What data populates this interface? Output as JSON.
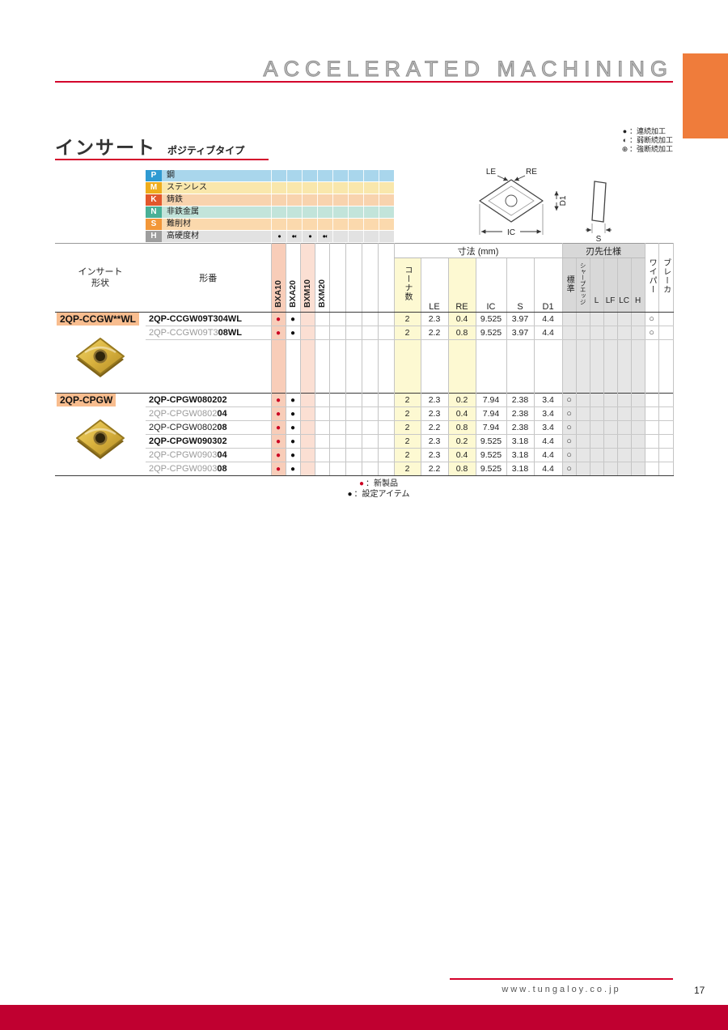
{
  "page": {
    "header_title": "ACCELERATED MACHINING",
    "title": "インサート",
    "subtitle": "ポジティブタイプ",
    "footer_url": "www.tungaloy.co.jp",
    "page_number": "17"
  },
  "machining_legend": [
    {
      "symbol": "●",
      "label": "：連続加工"
    },
    {
      "symbol": "◐",
      "label": "：弱断続加工"
    },
    {
      "symbol": "⊕",
      "label": "：強断続加工"
    }
  ],
  "material_table": {
    "rows": [
      {
        "code": "P",
        "label": "鋼",
        "header_color": "#2f9ad2",
        "band_color": "#a9d6ec",
        "cells": [
          "",
          "",
          "",
          "",
          "",
          "",
          "",
          ""
        ]
      },
      {
        "code": "M",
        "label": "ステンレス",
        "header_color": "#eead1c",
        "band_color": "#f9e7ac",
        "cells": [
          "",
          "",
          "",
          "",
          "",
          "",
          "",
          ""
        ]
      },
      {
        "code": "K",
        "label": "鋳鉄",
        "header_color": "#e2572b",
        "band_color": "#f8d3ae",
        "cells": [
          "",
          "",
          "",
          "",
          "",
          "",
          "",
          ""
        ]
      },
      {
        "code": "N",
        "label": "非鉄金属",
        "header_color": "#49b096",
        "band_color": "#c2e4da",
        "cells": [
          "",
          "",
          "",
          "",
          "",
          "",
          "",
          ""
        ]
      },
      {
        "code": "S",
        "label": "難削材",
        "header_color": "#f29739",
        "band_color": "#fbd9ad",
        "cells": [
          "",
          "",
          "",
          "",
          "",
          "",
          "",
          ""
        ]
      },
      {
        "code": "H",
        "label": "高硬度材",
        "header_color": "#9e9e9e",
        "band_color": "#e2e2e2",
        "cells": [
          "●",
          "●◐",
          "●",
          "●◐",
          "",
          "",
          "",
          ""
        ]
      }
    ]
  },
  "diagram": {
    "le": "LE",
    "re": "RE",
    "ic": "IC",
    "s": "S",
    "d1": "D1"
  },
  "table": {
    "headers": {
      "shape_line1": "インサート",
      "shape_line2": "形状",
      "part": "形番",
      "grades": [
        "BXA10",
        "BXA20",
        "BXM10",
        "BXM20"
      ],
      "dim_group": "寸法 (mm)",
      "corner": "コーナ数",
      "dims": [
        "LE",
        "RE",
        "IC",
        "S",
        "D1"
      ],
      "edge_group": "刃先仕様",
      "edge_cols": [
        "標準",
        "シャープエッジ",
        "L",
        "LF",
        "LC",
        "H"
      ],
      "wiper": "ワイパー",
      "breaker": "ブレーカ"
    },
    "groups": [
      {
        "name": "2QP-CCGW**WL",
        "tall_row": true,
        "rows": [
          {
            "part_prefix": "2QP-CCGW09T304WL",
            "part_suffix": "",
            "style": "bold",
            "dots": [
              "new",
              "set",
              "",
              ""
            ],
            "corner": "2",
            "le": "2.3",
            "re": "0.4",
            "ic": "9.525",
            "s": "3.97",
            "d1": "4.4",
            "mark": "wiper"
          },
          {
            "part_prefix": "2QP-CCGW09T3",
            "part_suffix": "08WL",
            "style": "gray",
            "dots": [
              "new",
              "set",
              "",
              ""
            ],
            "corner": "2",
            "le": "2.2",
            "re": "0.8",
            "ic": "9.525",
            "s": "3.97",
            "d1": "4.4",
            "mark": "wiper"
          }
        ]
      },
      {
        "name": "2QP-CPGW",
        "tall_row": false,
        "rows": [
          {
            "part_prefix": "2QP-CPGW080202",
            "part_suffix": "",
            "style": "bold",
            "dots": [
              "new",
              "set",
              "",
              ""
            ],
            "corner": "2",
            "le": "2.3",
            "re": "0.2",
            "ic": "7.94",
            "s": "2.38",
            "d1": "3.4",
            "mark": "std"
          },
          {
            "part_prefix": "2QP-CPGW0802",
            "part_suffix": "04",
            "style": "gray",
            "dots": [
              "new",
              "set",
              "",
              ""
            ],
            "corner": "2",
            "le": "2.3",
            "re": "0.4",
            "ic": "7.94",
            "s": "2.38",
            "d1": "3.4",
            "mark": "std"
          },
          {
            "part_prefix": "2QP-CPGW0802",
            "part_suffix": "08",
            "style": "plain",
            "dots": [
              "new",
              "set",
              "",
              ""
            ],
            "corner": "2",
            "le": "2.2",
            "re": "0.8",
            "ic": "7.94",
            "s": "2.38",
            "d1": "3.4",
            "mark": "std"
          },
          {
            "part_prefix": "2QP-CPGW090302",
            "part_suffix": "",
            "style": "bold",
            "dots": [
              "new",
              "set",
              "",
              ""
            ],
            "corner": "2",
            "le": "2.3",
            "re": "0.2",
            "ic": "9.525",
            "s": "3.18",
            "d1": "4.4",
            "mark": "std"
          },
          {
            "part_prefix": "2QP-CPGW0903",
            "part_suffix": "04",
            "style": "gray",
            "dots": [
              "new",
              "set",
              "",
              ""
            ],
            "corner": "2",
            "le": "2.3",
            "re": "0.4",
            "ic": "9.525",
            "s": "3.18",
            "d1": "4.4",
            "mark": "std"
          },
          {
            "part_prefix": "2QP-CPGW0903",
            "part_suffix": "08",
            "style": "gray",
            "dots": [
              "new",
              "set",
              "",
              ""
            ],
            "corner": "2",
            "le": "2.2",
            "re": "0.8",
            "ic": "9.525",
            "s": "3.18",
            "d1": "4.4",
            "mark": "std"
          }
        ]
      }
    ]
  },
  "item_legend": [
    {
      "symbol": "●",
      "color_key": "red",
      "label": "：新製品"
    },
    {
      "symbol": "●",
      "color_key": "black",
      "label": "：設定アイテム"
    }
  ],
  "colors": {
    "accent_red": "#d4012b",
    "bottom_bar": "#c00030",
    "tab_orange": "#ef7c3b",
    "group_chip": "#f8bd8f",
    "band_pink": "#f8cdb9",
    "band_pink_light": "#fbdfd3",
    "band_yellow": "#fdf9d2",
    "band_gray": "#e6e6e6",
    "header_gray": "#d8d8d8",
    "new_dot": "#cc0022"
  }
}
